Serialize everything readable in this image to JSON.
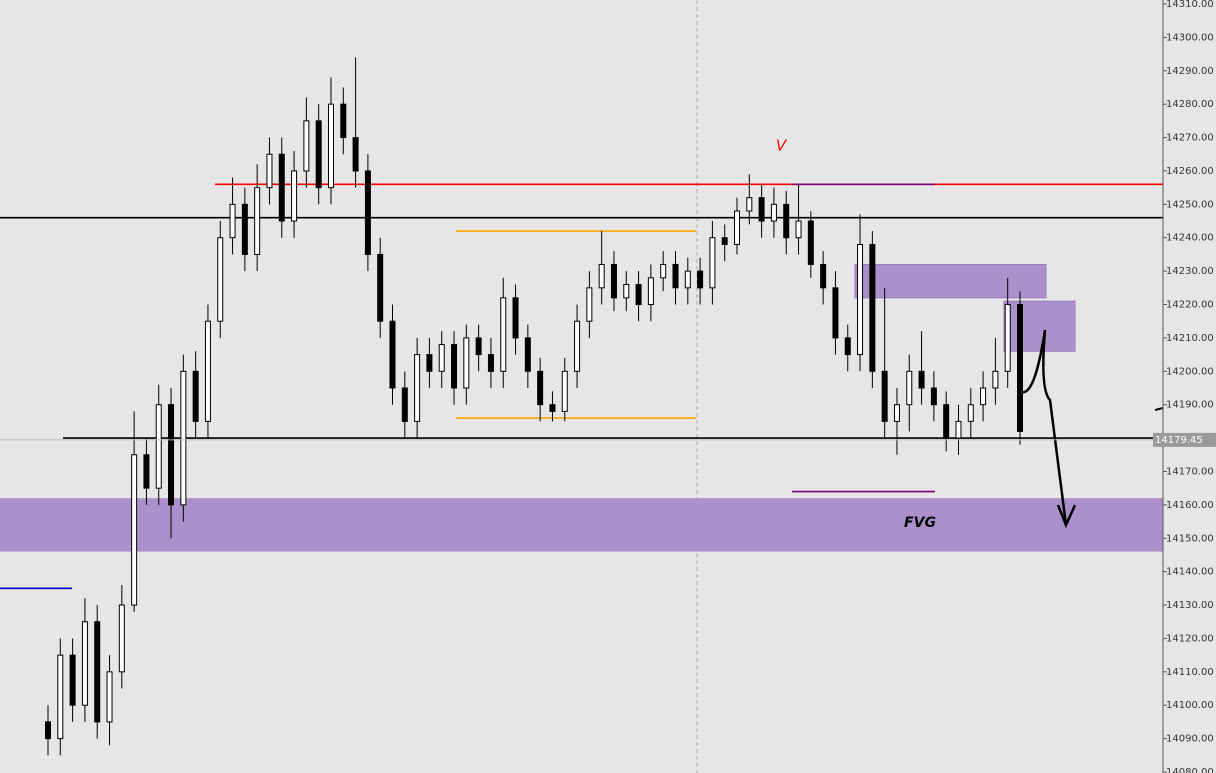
{
  "chart_data": {
    "type": "candlestick",
    "open": [
      14095,
      14090,
      14115,
      14100,
      14125,
      14095,
      14110,
      14130,
      14175,
      14165,
      14190,
      14160,
      14200,
      14185,
      14215,
      14240,
      14250,
      14235,
      14255,
      14265,
      14245,
      14260,
      14275,
      14255,
      14280,
      14270,
      14260,
      14235,
      14215,
      14195,
      14185,
      14205,
      14200,
      14208,
      14195,
      14210,
      14205,
      14200,
      14222,
      14210,
      14200,
      14190,
      14188,
      14200,
      14215,
      14225,
      14232,
      14222,
      14226,
      14220,
      14228,
      14232,
      14225,
      14230,
      14225,
      14240,
      14238,
      14248,
      14252,
      14245,
      14250,
      14240,
      14245,
      14232,
      14225,
      14210,
      14205,
      14238,
      14200,
      14185,
      14190,
      14200,
      14195,
      14190,
      14180,
      14185,
      14190,
      14195,
      14200,
      14220
    ],
    "high": [
      14100,
      14120,
      14120,
      14132,
      14130,
      14115,
      14136,
      14188,
      14180,
      14196,
      14195,
      14205,
      14206,
      14220,
      14245,
      14258,
      14255,
      14262,
      14270,
      14270,
      14266,
      14282,
      14280,
      14288,
      14285,
      14294,
      14265,
      14240,
      14220,
      14200,
      14210,
      14210,
      14212,
      14212,
      14214,
      14214,
      14210,
      14228,
      14226,
      14214,
      14204,
      14194,
      14204,
      14220,
      14230,
      14242,
      14236,
      14230,
      14230,
      14232,
      14236,
      14236,
      14234,
      14234,
      14245,
      14244,
      14252,
      14259,
      14256,
      14255,
      14254,
      14256,
      14248,
      14236,
      14230,
      14214,
      14247,
      14242,
      14225,
      14195,
      14205,
      14212,
      14200,
      14194,
      14190,
      14195,
      14200,
      14210,
      14228,
      14224
    ],
    "low": [
      14085,
      14085,
      14095,
      14095,
      14090,
      14088,
      14105,
      14128,
      14160,
      14160,
      14150,
      14155,
      14180,
      14180,
      14210,
      14235,
      14230,
      14230,
      14250,
      14240,
      14240,
      14255,
      14250,
      14250,
      14265,
      14255,
      14230,
      14210,
      14190,
      14180,
      14180,
      14195,
      14195,
      14190,
      14190,
      14200,
      14195,
      14195,
      14205,
      14195,
      14185,
      14185,
      14185,
      14195,
      14210,
      14220,
      14218,
      14218,
      14215,
      14215,
      14224,
      14220,
      14220,
      14220,
      14220,
      14233,
      14235,
      14244,
      14240,
      14240,
      14235,
      14235,
      14228,
      14220,
      14205,
      14200,
      14200,
      14195,
      14180,
      14175,
      14182,
      14190,
      14185,
      14176,
      14175,
      14180,
      14185,
      14190,
      14195,
      14178
    ],
    "close": [
      14090,
      14115,
      14100,
      14125,
      14095,
      14110,
      14130,
      14175,
      14165,
      14190,
      14160,
      14200,
      14185,
      14215,
      14240,
      14250,
      14235,
      14255,
      14265,
      14245,
      14260,
      14275,
      14255,
      14280,
      14270,
      14260,
      14235,
      14215,
      14195,
      14185,
      14205,
      14200,
      14208,
      14195,
      14210,
      14205,
      14200,
      14222,
      14210,
      14200,
      14190,
      14188,
      14200,
      14215,
      14225,
      14232,
      14222,
      14226,
      14220,
      14228,
      14232,
      14225,
      14230,
      14225,
      14240,
      14238,
      14248,
      14252,
      14245,
      14250,
      14240,
      14245,
      14232,
      14225,
      14210,
      14205,
      14238,
      14200,
      14185,
      14190,
      14200,
      14195,
      14190,
      14180,
      14185,
      14190,
      14195,
      14200,
      14220,
      14182
    ],
    "color": "#000000",
    "ylim": [
      14080,
      14310
    ],
    "yticks": [
      {
        "value": 14080,
        "label": "14080.00"
      },
      {
        "value": 14090,
        "label": "14090.00"
      },
      {
        "value": 14100,
        "label": "14100.00"
      },
      {
        "value": 14110,
        "label": "14110.00"
      },
      {
        "value": 14120,
        "label": "14120.00"
      },
      {
        "value": 14130,
        "label": "14130.00"
      },
      {
        "value": 14140,
        "label": "14140.00"
      },
      {
        "value": 14150,
        "label": "14150.00"
      },
      {
        "value": 14160,
        "label": "14160.00"
      },
      {
        "value": 14170,
        "label": "14170.00"
      },
      {
        "value": 14180,
        "label": "14180.00"
      },
      {
        "value": 14190,
        "label": "14190.00"
      },
      {
        "value": 14200,
        "label": "14200.00"
      },
      {
        "value": 14210,
        "label": "14210.00"
      },
      {
        "value": 14220,
        "label": "14220.00"
      },
      {
        "value": 14230,
        "label": "14230.00"
      },
      {
        "value": 14240,
        "label": "14240.00"
      },
      {
        "value": 14250,
        "label": "14250.00"
      },
      {
        "value": 14260,
        "label": "14260.00"
      },
      {
        "value": 14270,
        "label": "14270.00"
      },
      {
        "value": 14280,
        "label": "14280.00"
      },
      {
        "value": 14290,
        "label": "14290.00"
      },
      {
        "value": 14300,
        "label": "14300.00"
      },
      {
        "value": 14310,
        "label": "14310.00"
      }
    ],
    "current_price": 14179.45,
    "levels": [
      {
        "value": 14256,
        "color": "#ff0000"
      },
      {
        "value": 14246,
        "color": "#000000"
      },
      {
        "value": 14180,
        "color": "#000000"
      },
      {
        "value": 14242,
        "color": "#ffa500"
      },
      {
        "value": 14186,
        "color": "#ffa500"
      },
      {
        "value": 14256,
        "color": "#800080"
      },
      {
        "value": 14164,
        "color": "#800080"
      },
      {
        "value": 14135,
        "color": "#0000cc"
      }
    ],
    "zones": [
      {
        "low": 14146,
        "high": 14162,
        "color": "#a98bc9"
      },
      {
        "low": 14222,
        "high": 14232,
        "color": "#a98bc9"
      },
      {
        "low": 14206,
        "high": 14221,
        "color": "#a98bc9"
      }
    ],
    "annotations": [
      "V",
      "FVG"
    ]
  }
}
